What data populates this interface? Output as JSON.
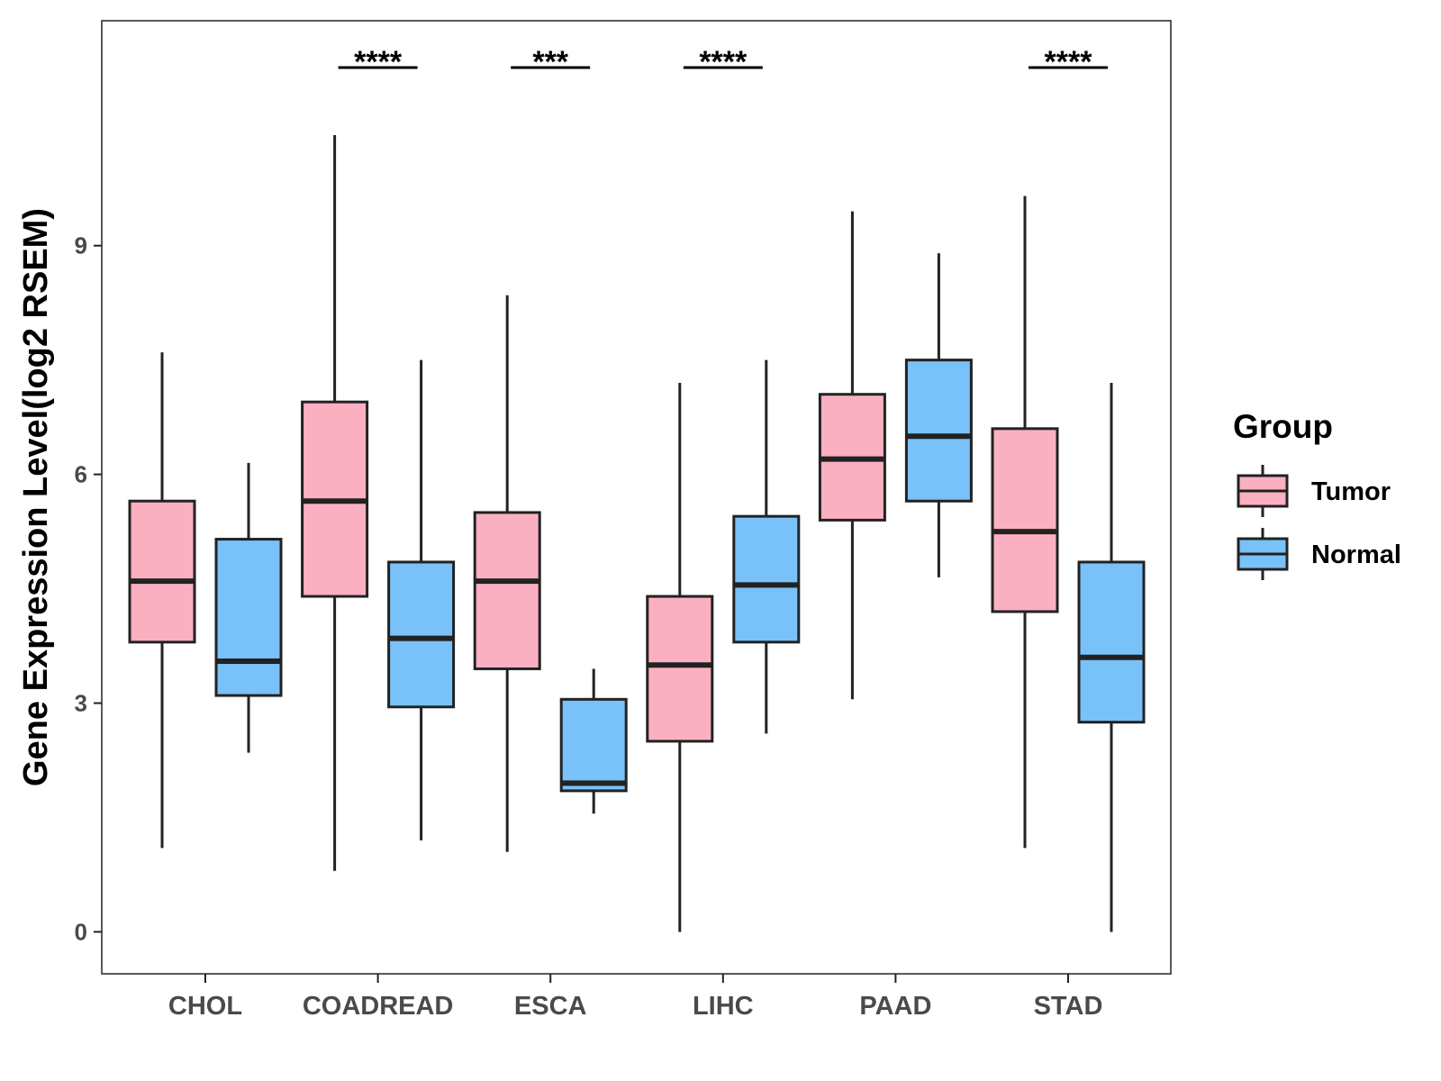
{
  "chart_data": {
    "type": "boxplot",
    "title": "",
    "xlabel": "",
    "ylabel": "Gene Expression Level(log2 RSEM)",
    "categories": [
      "CHOL",
      "COADREAD",
      "ESCA",
      "LIHC",
      "PAAD",
      "STAD"
    ],
    "ylim": [
      -0.55,
      11.95
    ],
    "yticks": [
      0,
      3,
      6,
      9
    ],
    "grid": false,
    "legend": {
      "title": "Group",
      "position": "right",
      "entries": [
        {
          "name": "Tumor",
          "color": "#FBB0C1"
        },
        {
          "name": "Normal",
          "color": "#78C1F9"
        }
      ]
    },
    "series": [
      {
        "name": "Tumor",
        "color": "#FBB0C1",
        "boxes": [
          {
            "whisker_low": 1.1,
            "q1": 3.8,
            "median": 4.6,
            "q3": 5.65,
            "whisker_high": 7.6
          },
          {
            "whisker_low": 0.8,
            "q1": 4.4,
            "median": 5.65,
            "q3": 6.95,
            "whisker_high": 10.45
          },
          {
            "whisker_low": 1.05,
            "q1": 3.45,
            "median": 4.6,
            "q3": 5.5,
            "whisker_high": 8.35
          },
          {
            "whisker_low": 0.0,
            "q1": 2.5,
            "median": 3.5,
            "q3": 4.4,
            "whisker_high": 7.2
          },
          {
            "whisker_low": 3.05,
            "q1": 5.4,
            "median": 6.2,
            "q3": 7.05,
            "whisker_high": 9.45
          },
          {
            "whisker_low": 1.1,
            "q1": 4.2,
            "median": 5.25,
            "q3": 6.6,
            "whisker_high": 9.65
          }
        ]
      },
      {
        "name": "Normal",
        "color": "#78C1F9",
        "boxes": [
          {
            "whisker_low": 2.35,
            "q1": 3.1,
            "median": 3.55,
            "q3": 5.15,
            "whisker_high": 6.15
          },
          {
            "whisker_low": 1.2,
            "q1": 2.95,
            "median": 3.85,
            "q3": 4.85,
            "whisker_high": 7.5
          },
          {
            "whisker_low": 1.55,
            "q1": 1.85,
            "median": 1.95,
            "q3": 3.05,
            "whisker_high": 3.45
          },
          {
            "whisker_low": 2.6,
            "q1": 3.8,
            "median": 4.55,
            "q3": 5.45,
            "whisker_high": 7.5
          },
          {
            "whisker_low": 4.65,
            "q1": 5.65,
            "median": 6.5,
            "q3": 7.5,
            "whisker_high": 8.9
          },
          {
            "whisker_low": 0.0,
            "q1": 2.75,
            "median": 3.6,
            "q3": 4.85,
            "whisker_high": 7.2
          }
        ]
      }
    ],
    "annotations": [
      {
        "category": "COADREAD",
        "label": "****"
      },
      {
        "category": "ESCA",
        "label": "***"
      },
      {
        "category": "LIHC",
        "label": "****"
      },
      {
        "category": "STAD",
        "label": "****"
      }
    ]
  }
}
